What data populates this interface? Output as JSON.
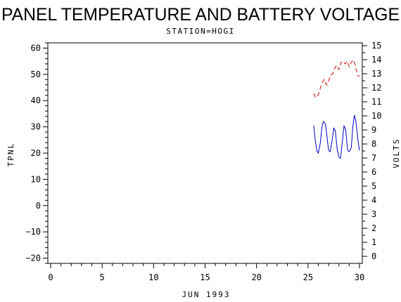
{
  "chart_data": {
    "type": "line",
    "title": "PANEL TEMPERATURE AND BATTERY VOLTAGE",
    "subtitle": "STATION=HOGI",
    "xlabel": "JUN 1993",
    "ylabel_left": "TPNL",
    "ylabel_right": "VOLTS",
    "xlim": [
      0,
      30
    ],
    "ylim_left": [
      -22,
      62
    ],
    "ylim_right": [
      -0.5,
      15.2
    ],
    "x_ticks": [
      0,
      5,
      10,
      15,
      20,
      25,
      30
    ],
    "y_left_ticks": [
      -20,
      -10,
      0,
      10,
      20,
      30,
      40,
      50,
      60
    ],
    "y_right_ticks": [
      0,
      1,
      2,
      3,
      4,
      5,
      6,
      7,
      8,
      9,
      10,
      11,
      12,
      13,
      14,
      15
    ],
    "grid": false,
    "series": [
      {
        "axis": "left",
        "color": "#0000cc",
        "dash": "solid",
        "points": [
          [
            25.55,
            30.5
          ],
          [
            25.7,
            25
          ],
          [
            25.85,
            21
          ],
          [
            26.0,
            20
          ],
          [
            26.2,
            24
          ],
          [
            26.35,
            30
          ],
          [
            26.5,
            32
          ],
          [
            26.7,
            31
          ],
          [
            26.85,
            26
          ],
          [
            27.0,
            21
          ],
          [
            27.15,
            20.5
          ],
          [
            27.35,
            25
          ],
          [
            27.5,
            29.5
          ],
          [
            27.65,
            28.5
          ],
          [
            27.85,
            21
          ],
          [
            28.0,
            18.5
          ],
          [
            28.15,
            18
          ],
          [
            28.35,
            25
          ],
          [
            28.5,
            30.5
          ],
          [
            28.65,
            29
          ],
          [
            28.85,
            21
          ],
          [
            29.0,
            20.5
          ],
          [
            29.2,
            22
          ],
          [
            29.35,
            30
          ],
          [
            29.5,
            34.5
          ],
          [
            29.65,
            32
          ],
          [
            29.85,
            25
          ],
          [
            30.0,
            21
          ]
        ]
      },
      {
        "axis": "right",
        "color": "#cc0000",
        "dash": "dashed",
        "points": [
          [
            25.55,
            11.6
          ],
          [
            25.75,
            11.3
          ],
          [
            26.0,
            11.5
          ],
          [
            26.2,
            12.0
          ],
          [
            26.4,
            12.4
          ],
          [
            26.6,
            12.6
          ],
          [
            26.8,
            12.2
          ],
          [
            27.0,
            12.5
          ],
          [
            27.2,
            12.9
          ],
          [
            27.4,
            13.0
          ],
          [
            27.6,
            13.4
          ],
          [
            27.8,
            13.6
          ],
          [
            28.0,
            13.3
          ],
          [
            28.2,
            13.8
          ],
          [
            28.4,
            13.9
          ],
          [
            28.6,
            13.7
          ],
          [
            28.8,
            13.9
          ],
          [
            29.0,
            13.5
          ],
          [
            29.2,
            13.8
          ],
          [
            29.4,
            14.0
          ],
          [
            29.6,
            13.6
          ],
          [
            29.8,
            12.9
          ],
          [
            30.0,
            12.8
          ]
        ]
      }
    ]
  }
}
